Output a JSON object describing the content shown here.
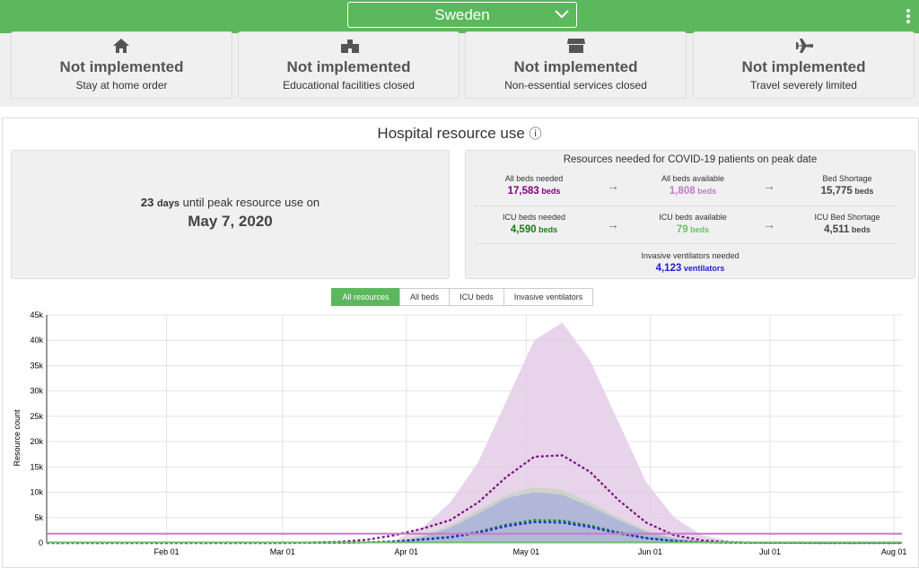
{
  "header": {
    "country": "Sweden"
  },
  "policies": [
    {
      "status": "Not implemented",
      "label": "Stay at home order"
    },
    {
      "status": "Not implemented",
      "label": "Educational facilities closed"
    },
    {
      "status": "Not implemented",
      "label": "Non-essential services closed"
    },
    {
      "status": "Not implemented",
      "label": "Travel severely limited"
    }
  ],
  "section": {
    "title": "Hospital resource use",
    "info": "ⓘ"
  },
  "peak": {
    "days": "23",
    "days_unit": "days",
    "text": "until peak resource use on",
    "date": "May 7, 2020"
  },
  "resources": {
    "title": "Resources needed for COVID-19 patients on peak date",
    "rows": [
      [
        {
          "label": "All beds needed",
          "value": "17,583",
          "unit": "beds"
        },
        {
          "label": "All beds available",
          "value": "1,808",
          "unit": "beds"
        },
        {
          "label": "Bed Shortage",
          "value": "15,775",
          "unit": "beds"
        }
      ],
      [
        {
          "label": "ICU beds needed",
          "value": "4,590",
          "unit": "beds"
        },
        {
          "label": "ICU beds available",
          "value": "79",
          "unit": "beds"
        },
        {
          "label": "ICU Bed Shortage",
          "value": "4,511",
          "unit": "beds"
        }
      ],
      [
        {
          "label": "Invasive ventilators needed",
          "value": "4,123",
          "unit": "ventilators"
        }
      ]
    ]
  },
  "tabs": [
    "All resources",
    "All beds",
    "ICU beds",
    "Invasive ventilators"
  ],
  "chart_data": {
    "type": "line",
    "y_label": "Resource count",
    "x": [
      "Jan 02",
      "Mar 01",
      "Mar 15",
      "Mar 22",
      "Mar 29",
      "Apr 05",
      "Apr 12",
      "Apr 19",
      "Apr 26",
      "May 03",
      "May 10",
      "May 17",
      "May 24",
      "May 31",
      "Jun 07",
      "Jun 14",
      "Jun 21",
      "Jun 28",
      "Jul 15",
      "Aug 03"
    ],
    "xlim": [
      "Jan 02",
      "Aug 03"
    ],
    "xticks": [
      "Feb 01",
      "Mar 01",
      "Apr 01",
      "May 01",
      "Jun 01",
      "Jul 01",
      "Aug 01"
    ],
    "ylim": [
      0,
      45000
    ],
    "yticks": [
      0,
      {
        "value": 5000,
        "label": "5k"
      },
      {
        "value": 10000,
        "label": "10k"
      },
      {
        "value": 15000,
        "label": "15k"
      },
      {
        "value": 20000,
        "label": "20k"
      },
      {
        "value": 25000,
        "label": "25k"
      },
      {
        "value": 30000,
        "label": "30k"
      },
      {
        "value": 35000,
        "label": "35k"
      },
      {
        "value": 40000,
        "label": "40k"
      },
      {
        "value": 45000,
        "label": "45k"
      }
    ],
    "grid": true,
    "series": [
      {
        "kind": "area",
        "color": "#e3cde6",
        "values": [
          0,
          0,
          0,
          0,
          500,
          3000,
          8000,
          16000,
          28000,
          40000,
          43500,
          36000,
          24000,
          12000,
          5000,
          1500,
          400,
          100,
          0,
          0
        ]
      },
      {
        "kind": "area",
        "color": "#c9d1c4",
        "values": [
          0,
          0,
          0,
          0,
          200,
          1500,
          3500,
          6500,
          9500,
          11000,
          10500,
          8000,
          5000,
          2500,
          1000,
          300,
          100,
          0,
          0,
          0
        ]
      },
      {
        "kind": "area",
        "color": "#aab3dc",
        "values": [
          0,
          0,
          0,
          0,
          150,
          1200,
          3000,
          5800,
          8800,
          10000,
          9500,
          7200,
          4500,
          2200,
          900,
          250,
          80,
          0,
          0,
          0
        ]
      },
      {
        "kind": "dotted",
        "color": "#7a0f7a",
        "values": [
          0,
          0,
          200,
          600,
          1500,
          2800,
          4500,
          8000,
          13000,
          17000,
          17300,
          14000,
          8500,
          4000,
          1500,
          500,
          150,
          50,
          0,
          0
        ]
      },
      {
        "kind": "dotted",
        "color": "#1b8a2a",
        "values": [
          0,
          0,
          30,
          100,
          300,
          700,
          1200,
          2200,
          3600,
          4500,
          4400,
          3400,
          2100,
          1000,
          400,
          120,
          40,
          10,
          0,
          0
        ]
      },
      {
        "kind": "dotted",
        "color": "#1f2fd0",
        "values": [
          0,
          0,
          25,
          90,
          270,
          640,
          1100,
          2000,
          3300,
          4100,
          4000,
          3100,
          1900,
          900,
          350,
          110,
          35,
          10,
          0,
          0
        ]
      }
    ],
    "reference_lines": [
      {
        "value": 1808,
        "color": "#c67dc8"
      },
      {
        "value": 79,
        "color": "#6dbf67"
      }
    ]
  }
}
